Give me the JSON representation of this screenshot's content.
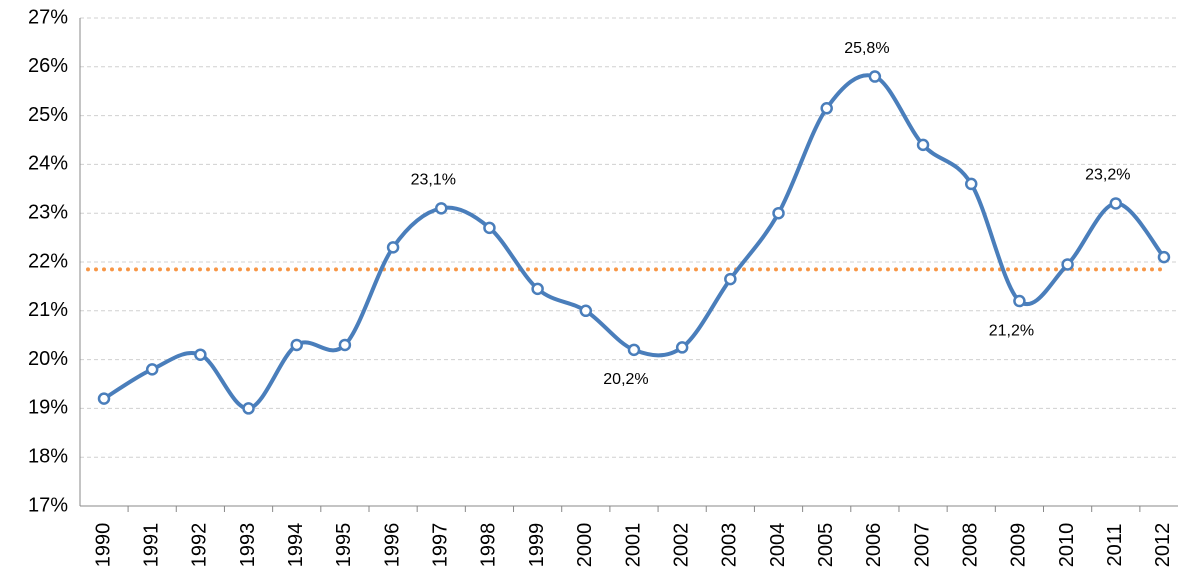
{
  "chart_data": {
    "type": "line",
    "categories": [
      "1990",
      "1991",
      "1992",
      "1993",
      "1994",
      "1995",
      "1996",
      "1997",
      "1998",
      "1999",
      "2000",
      "2001",
      "2002",
      "2003",
      "2004",
      "2005",
      "2006",
      "2007",
      "2008",
      "2009",
      "2010",
      "2011",
      "2012"
    ],
    "values": [
      19.2,
      19.8,
      20.1,
      19.0,
      20.3,
      20.3,
      22.3,
      23.1,
      22.7,
      21.45,
      21.0,
      20.2,
      20.25,
      21.65,
      23.0,
      25.15,
      25.8,
      24.4,
      23.6,
      21.2,
      21.95,
      23.2,
      22.1
    ],
    "value_labels": [
      null,
      null,
      null,
      null,
      null,
      null,
      null,
      "23,1%",
      null,
      null,
      null,
      "20,2%",
      null,
      null,
      null,
      null,
      "25,8%",
      null,
      null,
      "21,2%",
      null,
      "23,2%",
      null
    ],
    "color": "#4a7ebb",
    "reference_line": {
      "value": 21.85,
      "color": "#f79646"
    },
    "ylim": [
      17,
      27
    ],
    "yticks": [
      {
        "value": 17,
        "label": "17%"
      },
      {
        "value": 18,
        "label": "18%"
      },
      {
        "value": 19,
        "label": "19%"
      },
      {
        "value": 20,
        "label": "20%"
      },
      {
        "value": 21,
        "label": "21%"
      },
      {
        "value": 22,
        "label": "22%"
      },
      {
        "value": 23,
        "label": "23%"
      },
      {
        "value": 24,
        "label": "24%"
      },
      {
        "value": 25,
        "label": "25%"
      },
      {
        "value": 26,
        "label": "26%"
      },
      {
        "value": 27,
        "label": "27%"
      }
    ],
    "grid": true
  }
}
